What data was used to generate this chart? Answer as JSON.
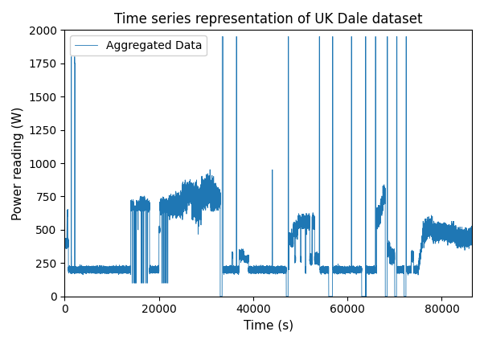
{
  "title": "Time series representation of UK Dale dataset",
  "xlabel": "Time (s)",
  "ylabel": "Power reading (W)",
  "line_color": "#1f77b4",
  "line_width": 0.6,
  "legend_label": "Aggregated Data",
  "xlim": [
    0,
    86400
  ],
  "ylim": [
    0,
    2000
  ],
  "yticks": [
    0,
    250,
    500,
    750,
    1000,
    1250,
    1500,
    1750,
    2000
  ],
  "xticks": [
    0,
    20000,
    40000,
    60000,
    80000
  ],
  "seed": 0
}
